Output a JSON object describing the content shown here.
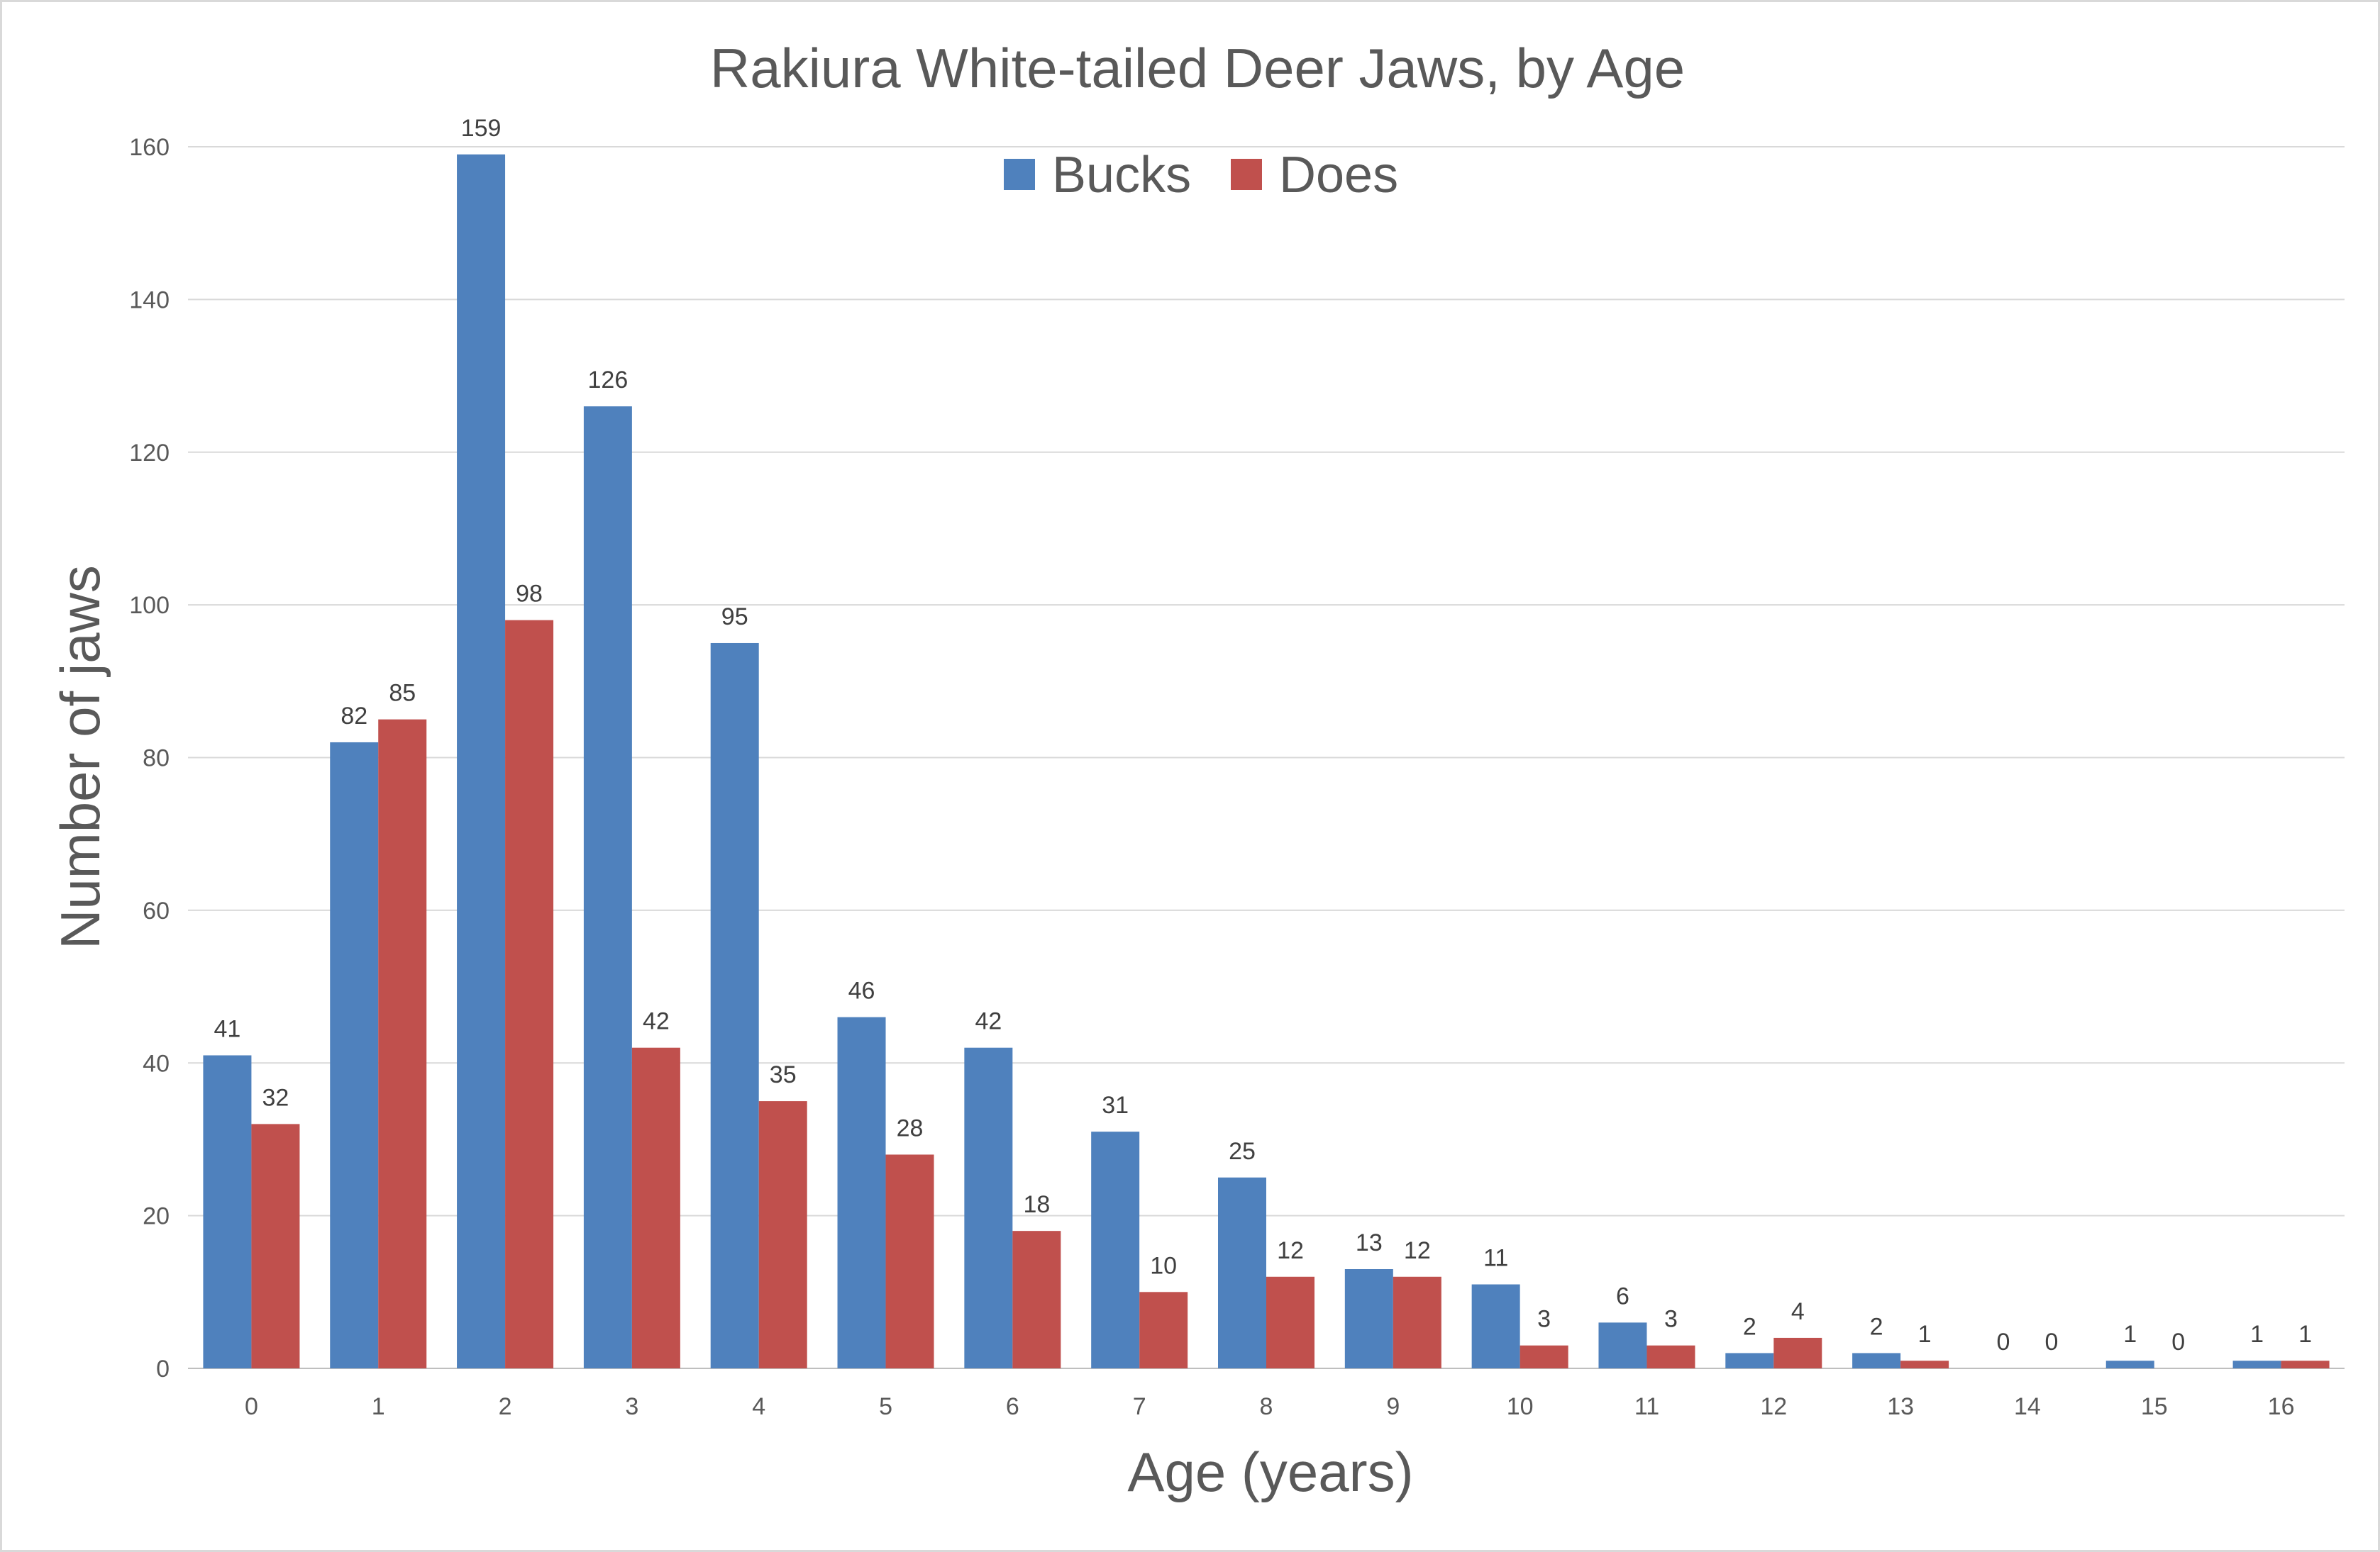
{
  "chart_data": {
    "type": "bar",
    "title": "Rakiura White-tailed Deer Jaws, by Age",
    "xlabel": "Age (years)",
    "ylabel": "Number of jaws",
    "categories": [
      "0",
      "1",
      "2",
      "3",
      "4",
      "5",
      "6",
      "7",
      "8",
      "9",
      "10",
      "11",
      "12",
      "13",
      "14",
      "15",
      "16"
    ],
    "series": [
      {
        "name": "Bucks",
        "color": "#4f81bd",
        "values": [
          41,
          82,
          159,
          126,
          95,
          46,
          42,
          31,
          25,
          13,
          11,
          6,
          2,
          2,
          0,
          1,
          1
        ]
      },
      {
        "name": "Does",
        "color": "#c0504d",
        "values": [
          32,
          85,
          98,
          42,
          35,
          28,
          18,
          10,
          12,
          12,
          3,
          3,
          4,
          1,
          0,
          0,
          1
        ]
      }
    ],
    "ylim": [
      0,
      160
    ],
    "yticks": [
      0,
      20,
      40,
      60,
      80,
      100,
      120,
      140,
      160
    ],
    "grid": true,
    "legend_position": "top-center",
    "data_labels": true
  }
}
